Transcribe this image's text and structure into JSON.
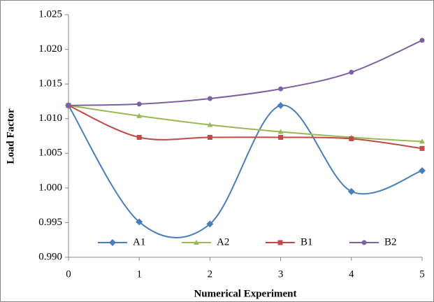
{
  "chart_data": {
    "type": "line",
    "x_label": "Numerical Experiment",
    "y_label": "Load Factor",
    "x": [
      0,
      1,
      2,
      3,
      4,
      5
    ],
    "xlim": [
      0,
      5
    ],
    "xticks": [
      0,
      1,
      2,
      3,
      4,
      5
    ],
    "ylim": [
      0.99,
      1.025
    ],
    "yticks": [
      {
        "value": 0.99,
        "label": "0.990"
      },
      0.995,
      {
        "value": 1.0,
        "label": "1.000"
      },
      1.005,
      {
        "value": 1.01,
        "label": "1.010"
      },
      1.015,
      {
        "value": 1.02,
        "label": "1.020"
      },
      1.025
    ],
    "smooth": true,
    "legend": "bottom",
    "series": [
      {
        "name": "A1",
        "color": "#4a7ebb",
        "marker": "diamond",
        "values": [
          1.0119,
          0.9951,
          0.9948,
          1.0119,
          0.9995,
          1.0025
        ]
      },
      {
        "name": "A2",
        "color": "#98b954",
        "marker": "triangle",
        "values": [
          1.0119,
          1.0104,
          1.0091,
          1.0081,
          1.0073,
          1.0067
        ]
      },
      {
        "name": "B1",
        "color": "#be4b48",
        "marker": "square",
        "values": [
          1.0119,
          1.0073,
          1.0073,
          1.0073,
          1.0071,
          1.0057
        ]
      },
      {
        "name": "B2",
        "color": "#7d60a0",
        "marker": "circle",
        "values": [
          1.0119,
          1.0121,
          1.0129,
          1.0143,
          1.0167,
          1.0213
        ]
      }
    ]
  }
}
